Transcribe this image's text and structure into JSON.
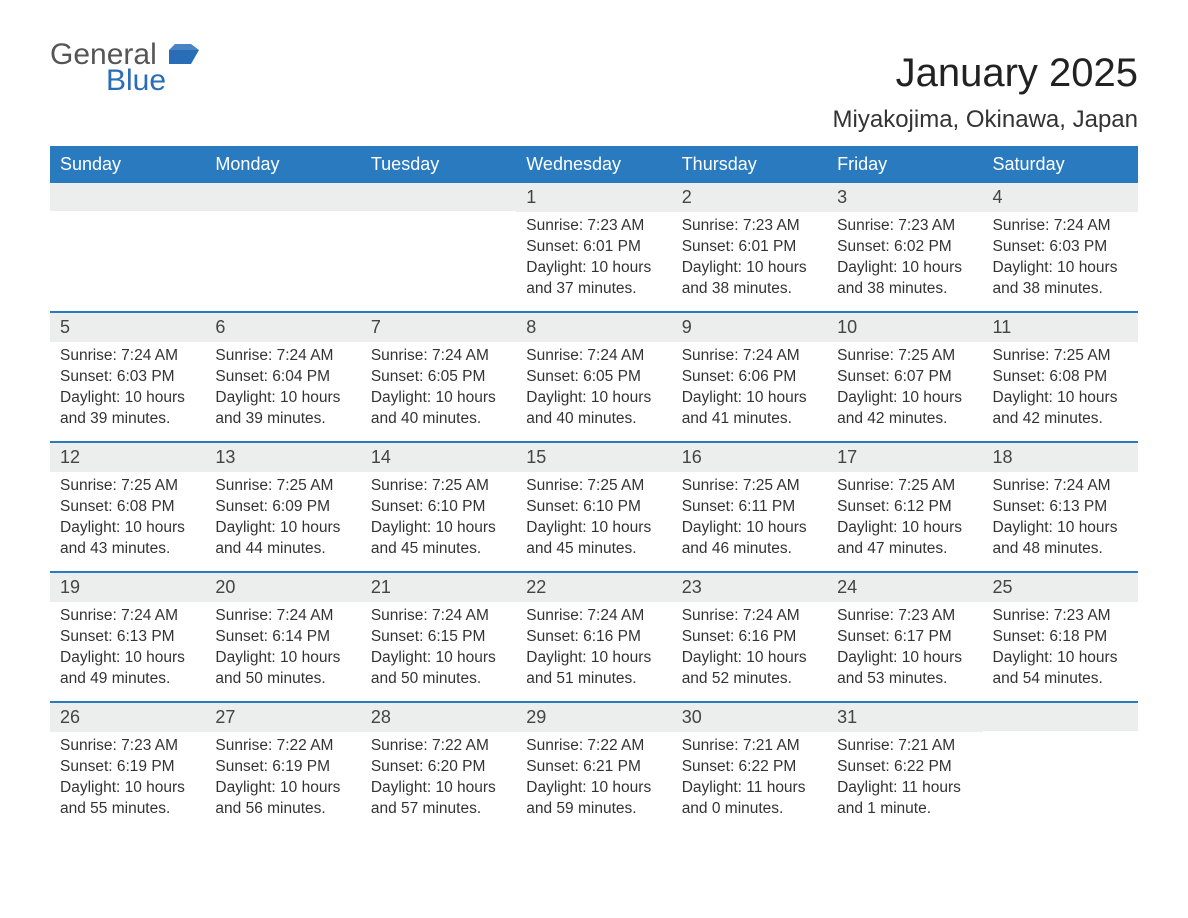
{
  "brand": {
    "word1": "General",
    "word2": "Blue",
    "flag_color": "#2a6db7",
    "text_gray": "#555555"
  },
  "title": "January 2025",
  "subtitle": "Miyakojima, Okinawa, Japan",
  "colors": {
    "header_bg": "#2a7ac0",
    "header_text": "#ffffff",
    "daynum_bg": "#eceded",
    "week_border": "#2a7ac0",
    "body_text": "#333333",
    "page_bg": "#ffffff"
  },
  "fonts": {
    "title_size_pt": 30,
    "subtitle_size_pt": 18,
    "header_size_pt": 14,
    "body_size_pt": 11
  },
  "grid": {
    "columns": 7,
    "rows": 5
  },
  "day_headers": [
    "Sunday",
    "Monday",
    "Tuesday",
    "Wednesday",
    "Thursday",
    "Friday",
    "Saturday"
  ],
  "weeks": [
    [
      {
        "daynum": "",
        "lines": []
      },
      {
        "daynum": "",
        "lines": []
      },
      {
        "daynum": "",
        "lines": []
      },
      {
        "daynum": "1",
        "lines": [
          "Sunrise: 7:23 AM",
          "Sunset: 6:01 PM",
          "Daylight: 10 hours",
          "and 37 minutes."
        ]
      },
      {
        "daynum": "2",
        "lines": [
          "Sunrise: 7:23 AM",
          "Sunset: 6:01 PM",
          "Daylight: 10 hours",
          "and 38 minutes."
        ]
      },
      {
        "daynum": "3",
        "lines": [
          "Sunrise: 7:23 AM",
          "Sunset: 6:02 PM",
          "Daylight: 10 hours",
          "and 38 minutes."
        ]
      },
      {
        "daynum": "4",
        "lines": [
          "Sunrise: 7:24 AM",
          "Sunset: 6:03 PM",
          "Daylight: 10 hours",
          "and 38 minutes."
        ]
      }
    ],
    [
      {
        "daynum": "5",
        "lines": [
          "Sunrise: 7:24 AM",
          "Sunset: 6:03 PM",
          "Daylight: 10 hours",
          "and 39 minutes."
        ]
      },
      {
        "daynum": "6",
        "lines": [
          "Sunrise: 7:24 AM",
          "Sunset: 6:04 PM",
          "Daylight: 10 hours",
          "and 39 minutes."
        ]
      },
      {
        "daynum": "7",
        "lines": [
          "Sunrise: 7:24 AM",
          "Sunset: 6:05 PM",
          "Daylight: 10 hours",
          "and 40 minutes."
        ]
      },
      {
        "daynum": "8",
        "lines": [
          "Sunrise: 7:24 AM",
          "Sunset: 6:05 PM",
          "Daylight: 10 hours",
          "and 40 minutes."
        ]
      },
      {
        "daynum": "9",
        "lines": [
          "Sunrise: 7:24 AM",
          "Sunset: 6:06 PM",
          "Daylight: 10 hours",
          "and 41 minutes."
        ]
      },
      {
        "daynum": "10",
        "lines": [
          "Sunrise: 7:25 AM",
          "Sunset: 6:07 PM",
          "Daylight: 10 hours",
          "and 42 minutes."
        ]
      },
      {
        "daynum": "11",
        "lines": [
          "Sunrise: 7:25 AM",
          "Sunset: 6:08 PM",
          "Daylight: 10 hours",
          "and 42 minutes."
        ]
      }
    ],
    [
      {
        "daynum": "12",
        "lines": [
          "Sunrise: 7:25 AM",
          "Sunset: 6:08 PM",
          "Daylight: 10 hours",
          "and 43 minutes."
        ]
      },
      {
        "daynum": "13",
        "lines": [
          "Sunrise: 7:25 AM",
          "Sunset: 6:09 PM",
          "Daylight: 10 hours",
          "and 44 minutes."
        ]
      },
      {
        "daynum": "14",
        "lines": [
          "Sunrise: 7:25 AM",
          "Sunset: 6:10 PM",
          "Daylight: 10 hours",
          "and 45 minutes."
        ]
      },
      {
        "daynum": "15",
        "lines": [
          "Sunrise: 7:25 AM",
          "Sunset: 6:10 PM",
          "Daylight: 10 hours",
          "and 45 minutes."
        ]
      },
      {
        "daynum": "16",
        "lines": [
          "Sunrise: 7:25 AM",
          "Sunset: 6:11 PM",
          "Daylight: 10 hours",
          "and 46 minutes."
        ]
      },
      {
        "daynum": "17",
        "lines": [
          "Sunrise: 7:25 AM",
          "Sunset: 6:12 PM",
          "Daylight: 10 hours",
          "and 47 minutes."
        ]
      },
      {
        "daynum": "18",
        "lines": [
          "Sunrise: 7:24 AM",
          "Sunset: 6:13 PM",
          "Daylight: 10 hours",
          "and 48 minutes."
        ]
      }
    ],
    [
      {
        "daynum": "19",
        "lines": [
          "Sunrise: 7:24 AM",
          "Sunset: 6:13 PM",
          "Daylight: 10 hours",
          "and 49 minutes."
        ]
      },
      {
        "daynum": "20",
        "lines": [
          "Sunrise: 7:24 AM",
          "Sunset: 6:14 PM",
          "Daylight: 10 hours",
          "and 50 minutes."
        ]
      },
      {
        "daynum": "21",
        "lines": [
          "Sunrise: 7:24 AM",
          "Sunset: 6:15 PM",
          "Daylight: 10 hours",
          "and 50 minutes."
        ]
      },
      {
        "daynum": "22",
        "lines": [
          "Sunrise: 7:24 AM",
          "Sunset: 6:16 PM",
          "Daylight: 10 hours",
          "and 51 minutes."
        ]
      },
      {
        "daynum": "23",
        "lines": [
          "Sunrise: 7:24 AM",
          "Sunset: 6:16 PM",
          "Daylight: 10 hours",
          "and 52 minutes."
        ]
      },
      {
        "daynum": "24",
        "lines": [
          "Sunrise: 7:23 AM",
          "Sunset: 6:17 PM",
          "Daylight: 10 hours",
          "and 53 minutes."
        ]
      },
      {
        "daynum": "25",
        "lines": [
          "Sunrise: 7:23 AM",
          "Sunset: 6:18 PM",
          "Daylight: 10 hours",
          "and 54 minutes."
        ]
      }
    ],
    [
      {
        "daynum": "26",
        "lines": [
          "Sunrise: 7:23 AM",
          "Sunset: 6:19 PM",
          "Daylight: 10 hours",
          "and 55 minutes."
        ]
      },
      {
        "daynum": "27",
        "lines": [
          "Sunrise: 7:22 AM",
          "Sunset: 6:19 PM",
          "Daylight: 10 hours",
          "and 56 minutes."
        ]
      },
      {
        "daynum": "28",
        "lines": [
          "Sunrise: 7:22 AM",
          "Sunset: 6:20 PM",
          "Daylight: 10 hours",
          "and 57 minutes."
        ]
      },
      {
        "daynum": "29",
        "lines": [
          "Sunrise: 7:22 AM",
          "Sunset: 6:21 PM",
          "Daylight: 10 hours",
          "and 59 minutes."
        ]
      },
      {
        "daynum": "30",
        "lines": [
          "Sunrise: 7:21 AM",
          "Sunset: 6:22 PM",
          "Daylight: 11 hours",
          "and 0 minutes."
        ]
      },
      {
        "daynum": "31",
        "lines": [
          "Sunrise: 7:21 AM",
          "Sunset: 6:22 PM",
          "Daylight: 11 hours",
          "and 1 minute."
        ]
      },
      {
        "daynum": "",
        "lines": []
      }
    ]
  ]
}
